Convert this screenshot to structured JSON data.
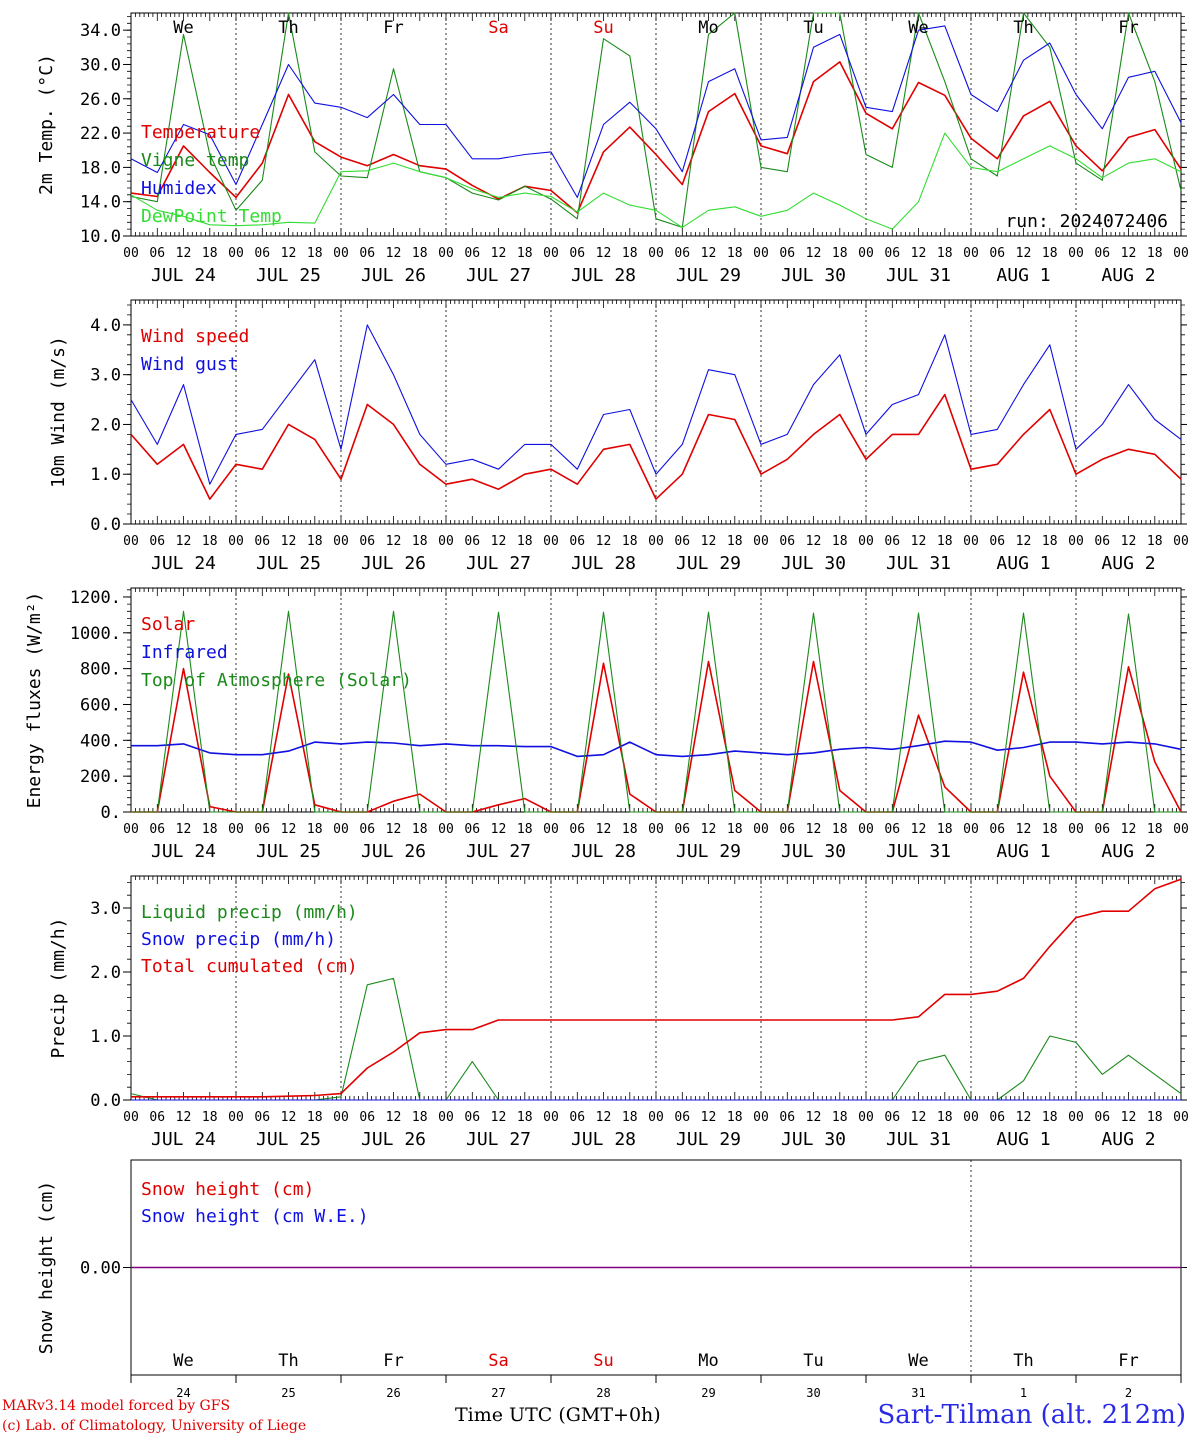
{
  "page": {
    "station": "Sart-Tilman (alt. 212m)",
    "credit_line1": "MARv3.14 model forced by GFS",
    "credit_line2": "(c) Lab. of Climatology, University of Liege",
    "time_axis_label": "Time UTC (GMT+0h)",
    "run_label": "run: 2024072406"
  },
  "days": {
    "weekday_labels": [
      "We",
      "Th",
      "Fr",
      "Sa",
      "Su",
      "Mo",
      "Tu",
      "We",
      "Th",
      "Fr"
    ],
    "weekend_color": "#e00000",
    "weekend_flags": [
      false,
      false,
      false,
      true,
      true,
      false,
      false,
      false,
      false,
      false
    ],
    "date_labels": [
      "JUL 24",
      "JUL 25",
      "JUL 26",
      "JUL 27",
      "JUL 28",
      "JUL 29",
      "JUL 30",
      "JUL 31",
      "AUG  1",
      "AUG  2"
    ],
    "hour_ticks": [
      "00",
      "06",
      "12",
      "18"
    ],
    "end_tick": "00",
    "bottom_day_numbers": [
      "24",
      "25",
      "26",
      "27",
      "28",
      "29",
      "30",
      "31",
      "1",
      "2"
    ]
  },
  "colors": {
    "red": "#e00000",
    "green": "#1a8a1a",
    "blue": "#1010e0",
    "lightgreen": "#33dd33",
    "purple": "#800080"
  },
  "chart_data": [
    {
      "type": "line",
      "ylabel": "2m Temp. (°C)",
      "ylim": [
        10.0,
        36.0
      ],
      "yticks": [
        "10.0",
        "14.0",
        "18.0",
        "22.0",
        "26.0",
        "30.0",
        "34.0"
      ],
      "x_hours": [
        0,
        6,
        12,
        18,
        24,
        30,
        36,
        42,
        48,
        54,
        60,
        66,
        72,
        78,
        84,
        90,
        96,
        102,
        108,
        114,
        120,
        126,
        132,
        138,
        144,
        150,
        156,
        162,
        168,
        174,
        180,
        186,
        192,
        198,
        204,
        210,
        216,
        222,
        228,
        234,
        240
      ],
      "series": [
        {
          "name": "Temperature",
          "color": "red",
          "values": [
            15.0,
            14.6,
            20.5,
            17.4,
            14.5,
            18.5,
            26.5,
            21.0,
            19.2,
            18.2,
            19.5,
            18.2,
            17.8,
            15.9,
            14.3,
            15.8,
            15.3,
            12.7,
            19.8,
            22.7,
            19.5,
            16.0,
            24.5,
            26.6,
            20.5,
            19.6,
            28.0,
            30.3,
            24.3,
            22.5,
            27.9,
            26.4,
            21.4,
            19.0,
            24.0,
            25.7,
            20.5,
            17.6,
            21.5,
            22.4,
            17.8
          ]
        },
        {
          "name": "Vigne temp",
          "color": "green",
          "values": [
            14.6,
            14.0,
            33.5,
            19.5,
            13.0,
            16.5,
            36.0,
            19.8,
            17.0,
            16.8,
            29.5,
            17.5,
            16.8,
            15.0,
            14.2,
            15.8,
            14.3,
            12.0,
            33.0,
            31.0,
            12.0,
            11.0,
            33.5,
            36.0,
            18.0,
            17.5,
            36.5,
            36.0,
            19.5,
            18.0,
            36.0,
            28.0,
            19.0,
            17.0,
            36.0,
            32.0,
            18.5,
            16.5,
            36.0,
            28.0,
            15.3
          ]
        },
        {
          "name": "Humidex",
          "color": "blue",
          "values": [
            19.0,
            17.4,
            23.0,
            21.8,
            16.0,
            23.0,
            30.0,
            25.5,
            25.0,
            23.8,
            26.5,
            23.0,
            23.0,
            19.0,
            19.0,
            19.5,
            19.8,
            14.5,
            23.0,
            25.6,
            22.5,
            17.5,
            28.0,
            29.5,
            21.2,
            21.5,
            32.0,
            33.5,
            25.0,
            24.5,
            34.0,
            34.5,
            26.5,
            24.5,
            30.5,
            32.5,
            26.5,
            22.5,
            28.5,
            29.2,
            23.2
          ]
        },
        {
          "name": "DewPoint Temp",
          "color": "lightgreen",
          "values": [
            14.8,
            13.0,
            12.3,
            11.3,
            11.2,
            11.3,
            11.6,
            11.5,
            17.5,
            17.6,
            18.5,
            17.5,
            16.8,
            15.5,
            14.5,
            15.0,
            14.6,
            12.8,
            15.0,
            13.6,
            13.0,
            11.0,
            13.0,
            13.4,
            12.3,
            13.0,
            15.0,
            13.6,
            12.0,
            10.8,
            14.0,
            22.0,
            18.0,
            17.5,
            19.0,
            20.5,
            19.0,
            16.8,
            18.5,
            19.0,
            17.5
          ]
        }
      ],
      "legend": [
        "Temperature",
        "Vigne temp",
        "Humidex",
        "DewPoint Temp"
      ],
      "legend_placement": "left"
    },
    {
      "type": "line",
      "ylabel": "10m Wind (m/s)",
      "ylim": [
        0.0,
        4.5
      ],
      "yticks": [
        "0.0",
        "1.0",
        "2.0",
        "3.0",
        "4.0"
      ],
      "x_hours": [
        0,
        6,
        12,
        18,
        24,
        30,
        36,
        42,
        48,
        54,
        60,
        66,
        72,
        78,
        84,
        90,
        96,
        102,
        108,
        114,
        120,
        126,
        132,
        138,
        144,
        150,
        156,
        162,
        168,
        174,
        180,
        186,
        192,
        198,
        204,
        210,
        216,
        222,
        228,
        234,
        240
      ],
      "series": [
        {
          "name": "Wind speed",
          "color": "red",
          "values": [
            1.8,
            1.2,
            1.6,
            0.5,
            1.2,
            1.1,
            2.0,
            1.7,
            0.9,
            2.4,
            2.0,
            1.2,
            0.8,
            0.9,
            0.7,
            1.0,
            1.1,
            0.8,
            1.5,
            1.6,
            0.5,
            1.0,
            2.2,
            2.1,
            1.0,
            1.3,
            1.8,
            2.2,
            1.3,
            1.8,
            1.8,
            2.6,
            1.1,
            1.2,
            1.8,
            2.3,
            1.0,
            1.3,
            1.5,
            1.4,
            0.9
          ]
        },
        {
          "name": "Wind gust",
          "color": "blue",
          "values": [
            2.5,
            1.6,
            2.8,
            0.8,
            1.8,
            1.9,
            2.6,
            3.3,
            1.5,
            4.0,
            3.0,
            1.8,
            1.2,
            1.3,
            1.1,
            1.6,
            1.6,
            1.1,
            2.2,
            2.3,
            1.0,
            1.6,
            3.1,
            3.0,
            1.6,
            1.8,
            2.8,
            3.4,
            1.8,
            2.4,
            2.6,
            3.8,
            1.8,
            1.9,
            2.8,
            3.6,
            1.5,
            2.0,
            2.8,
            2.1,
            1.7
          ]
        }
      ],
      "legend": [
        "Wind speed",
        "Wind gust"
      ],
      "legend_placement": "left"
    },
    {
      "type": "line",
      "ylabel": "Energy fluxes (W/m²)",
      "ylim": [
        0,
        1250
      ],
      "yticks": [
        "0.",
        "200.",
        "400.",
        "600.",
        "800.",
        "1000.",
        "1200."
      ],
      "x_hours": [
        0,
        6,
        12,
        18,
        24,
        30,
        36,
        42,
        48,
        54,
        60,
        66,
        72,
        78,
        84,
        90,
        96,
        102,
        108,
        114,
        120,
        126,
        132,
        138,
        144,
        150,
        156,
        162,
        168,
        174,
        180,
        186,
        192,
        198,
        204,
        210,
        216,
        222,
        228,
        234,
        240
      ],
      "series": [
        {
          "name": "Solar",
          "color": "red",
          "values": [
            0,
            0,
            800,
            30,
            0,
            0,
            770,
            40,
            0,
            0,
            60,
            100,
            0,
            0,
            40,
            75,
            0,
            0,
            830,
            100,
            0,
            0,
            840,
            120,
            0,
            0,
            840,
            120,
            0,
            0,
            540,
            140,
            0,
            0,
            780,
            200,
            0,
            0,
            810,
            280,
            0
          ]
        },
        {
          "name": "Infrared",
          "color": "blue",
          "values": [
            370,
            370,
            380,
            330,
            320,
            320,
            340,
            390,
            380,
            390,
            385,
            370,
            380,
            370,
            370,
            365,
            365,
            310,
            320,
            390,
            320,
            310,
            320,
            340,
            330,
            320,
            330,
            350,
            360,
            350,
            370,
            395,
            390,
            345,
            360,
            390,
            390,
            380,
            390,
            380,
            350
          ]
        },
        {
          "name": "Top of Atmosphere (Solar)",
          "color": "green",
          "values": [
            0,
            0,
            1120,
            0,
            0,
            0,
            1120,
            0,
            0,
            0,
            1120,
            0,
            0,
            0,
            1115,
            0,
            0,
            0,
            1115,
            0,
            0,
            0,
            1115,
            0,
            0,
            0,
            1110,
            0,
            0,
            0,
            1110,
            0,
            0,
            0,
            1110,
            0,
            0,
            0,
            1105,
            0,
            0
          ]
        }
      ],
      "legend": [
        "Solar",
        "Infrared",
        "Top of Atmosphere (Solar)"
      ],
      "legend_placement": "left"
    },
    {
      "type": "line",
      "ylabel": "Precip (mm/h)",
      "ylim": [
        0.0,
        3.5
      ],
      "yticks": [
        "0.0",
        "1.0",
        "2.0",
        "3.0"
      ],
      "x_hours": [
        0,
        6,
        12,
        18,
        24,
        30,
        36,
        42,
        48,
        54,
        60,
        66,
        72,
        78,
        84,
        90,
        96,
        102,
        108,
        114,
        120,
        126,
        132,
        138,
        144,
        150,
        156,
        162,
        168,
        174,
        180,
        186,
        192,
        198,
        204,
        210,
        216,
        222,
        228,
        234,
        240
      ],
      "series": [
        {
          "name": "Liquid precip (mm/h)",
          "color": "green",
          "values": [
            0.1,
            0.0,
            0.0,
            0.0,
            0.0,
            0.0,
            0.0,
            0.0,
            0.05,
            1.8,
            1.9,
            0.0,
            0.0,
            0.6,
            0.0,
            0.0,
            0.0,
            0.0,
            0.0,
            0.0,
            0.0,
            0.0,
            0.0,
            0.0,
            0.0,
            0.0,
            0.0,
            0.0,
            0.0,
            0.0,
            0.6,
            0.7,
            0.0,
            0.0,
            0.3,
            1.0,
            0.9,
            0.4,
            0.7,
            0.4,
            0.1
          ]
        },
        {
          "name": "Snow precip (mm/h)",
          "color": "blue",
          "values": [
            0,
            0,
            0,
            0,
            0,
            0,
            0,
            0,
            0,
            0,
            0,
            0,
            0,
            0,
            0,
            0,
            0,
            0,
            0,
            0,
            0,
            0,
            0,
            0,
            0,
            0,
            0,
            0,
            0,
            0,
            0,
            0,
            0,
            0,
            0,
            0,
            0,
            0,
            0,
            0,
            0
          ]
        },
        {
          "name": "Total cumulated (cm)",
          "color": "red",
          "values": [
            0.05,
            0.05,
            0.05,
            0.05,
            0.05,
            0.05,
            0.06,
            0.07,
            0.1,
            0.5,
            0.75,
            1.05,
            1.1,
            1.1,
            1.25,
            1.25,
            1.25,
            1.25,
            1.25,
            1.25,
            1.25,
            1.25,
            1.25,
            1.25,
            1.25,
            1.25,
            1.25,
            1.25,
            1.25,
            1.25,
            1.3,
            1.65,
            1.65,
            1.7,
            1.9,
            2.4,
            2.85,
            2.95,
            2.95,
            3.3,
            3.45
          ]
        }
      ],
      "legend": [
        "Liquid precip (mm/h)",
        "Snow precip (mm/h)",
        "Total cumulated (cm)"
      ],
      "legend_placement": "left"
    },
    {
      "type": "line",
      "ylabel": "Snow height (cm)",
      "ylim": [
        -1.0,
        1.0
      ],
      "yticks": [
        "0.00"
      ],
      "x_hours": [
        0,
        240
      ],
      "series": [
        {
          "name": "Snow height (cm)",
          "color": "red",
          "values": [
            0.0,
            0.0
          ]
        },
        {
          "name": "Snow height (cm W.E.)",
          "color": "blue",
          "values": [
            0.0,
            0.0
          ]
        }
      ],
      "legend": [
        "Snow height (cm)",
        "Snow height (cm W.E.)"
      ],
      "legend_placement": "left"
    }
  ]
}
